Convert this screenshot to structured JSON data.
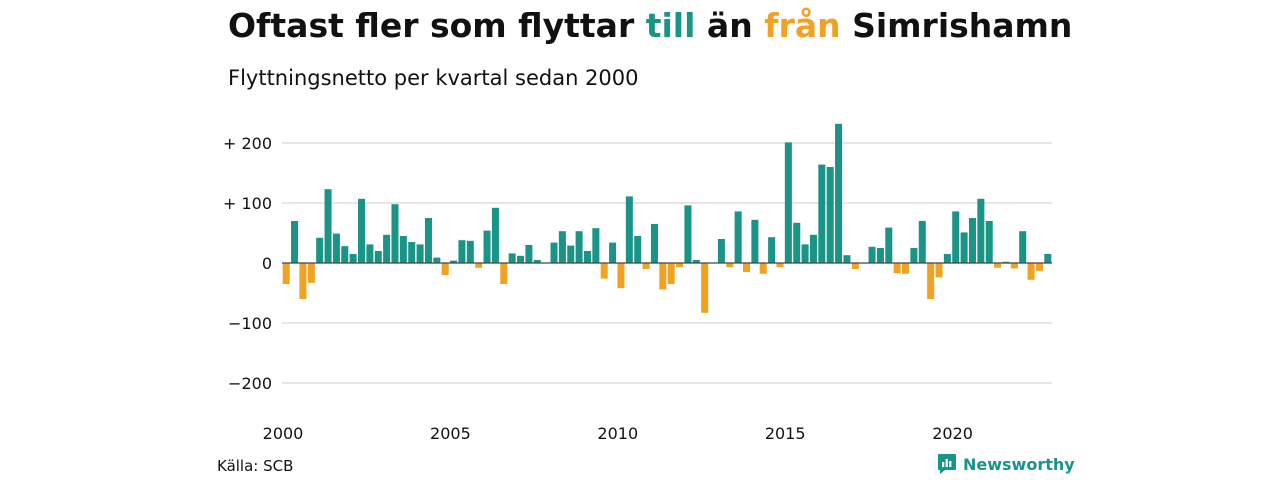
{
  "header": {
    "title_parts": [
      {
        "text": "Oftast fler som flyttar ",
        "color": "#111111"
      },
      {
        "text": "till",
        "color": "#1a9487"
      },
      {
        "text": " än ",
        "color": "#111111"
      },
      {
        "text": "från",
        "color": "#f0a323"
      },
      {
        "text": " Simrishamn",
        "color": "#111111"
      }
    ],
    "subtitle": "Flyttningsnetto per kvartal sedan 2000"
  },
  "footer": {
    "source": "Källa: SCB",
    "brand": "Newsworthy",
    "brand_icon": "newsworthy-logo-icon"
  },
  "colors": {
    "positive": "#1a9487",
    "negative": "#f0a323",
    "grid": "#dddddd",
    "zero_line": "#444444",
    "brand": "#18948a"
  },
  "chart_data": {
    "type": "bar",
    "ylim": [
      -230,
      235
    ],
    "yticks": [
      200,
      100,
      0,
      -100,
      -200
    ],
    "ytick_labels": [
      "+ 200",
      "+ 100",
      "0",
      "−100",
      "−200"
    ],
    "xtick_labels": [
      "2000",
      "2005",
      "2010",
      "2015",
      "2020"
    ],
    "start_year": 2000,
    "grid": true,
    "series": [
      {
        "values": [
          -35,
          70,
          -60,
          -33,
          42,
          123,
          49,
          28,
          15,
          107,
          31,
          20,
          47,
          98,
          45,
          35,
          31,
          75,
          9,
          -20,
          4,
          38,
          37,
          -8,
          54,
          92,
          -35,
          16,
          12,
          30,
          5,
          0,
          34,
          53,
          29,
          53,
          20,
          58,
          -26,
          34,
          -42,
          111,
          45,
          -10,
          65,
          -44,
          -35,
          -7,
          96,
          5,
          -83,
          0,
          40,
          -7,
          86,
          -15,
          72,
          -18,
          43,
          -7,
          201,
          67,
          31,
          47,
          164,
          160,
          232,
          13,
          -10,
          0,
          27,
          25,
          59,
          -17,
          -18,
          25,
          70,
          -60,
          -24,
          15,
          86,
          51,
          75,
          107,
          70,
          -8,
          2,
          -9,
          53,
          -28,
          -13,
          15
        ]
      }
    ]
  }
}
